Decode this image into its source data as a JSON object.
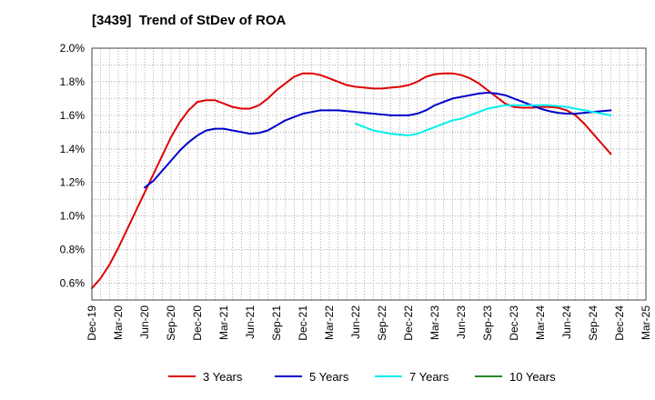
{
  "chart_data": {
    "type": "line",
    "title": "[3439]  Trend of StDev of ROA",
    "xlabel": "",
    "ylabel": "",
    "x_ticks": [
      "Dec-19",
      "Mar-20",
      "Jun-20",
      "Sep-20",
      "Dec-20",
      "Mar-21",
      "Jun-21",
      "Sep-21",
      "Dec-21",
      "Mar-22",
      "Jun-22",
      "Sep-22",
      "Dec-22",
      "Mar-23",
      "Jun-23",
      "Sep-23",
      "Dec-23",
      "Mar-24",
      "Jun-24",
      "Sep-24",
      "Dec-24",
      "Mar-25"
    ],
    "y_ticks": [
      {
        "value": 0.6,
        "label": "0.6%"
      },
      {
        "value": 0.8,
        "label": "0.8%"
      },
      {
        "value": 1.0,
        "label": "1.0%"
      },
      {
        "value": 1.2,
        "label": "1.2%"
      },
      {
        "value": 1.4,
        "label": "1.4%"
      },
      {
        "value": 1.6,
        "label": "1.6%"
      },
      {
        "value": 1.8,
        "label": "1.8%"
      },
      {
        "value": 2.0,
        "label": "2.0%"
      }
    ],
    "ylim": [
      0.5,
      2.0
    ],
    "grid": true,
    "legend_position": "bottom",
    "series": [
      {
        "name": "3 Years",
        "color": "#dd0000",
        "points": [
          [
            "Dec-19",
            0.57
          ],
          [
            "Jan-20",
            0.63
          ],
          [
            "Feb-20",
            0.71
          ],
          [
            "Mar-20",
            0.81
          ],
          [
            "Apr-20",
            0.92
          ],
          [
            "May-20",
            1.03
          ],
          [
            "Jun-20",
            1.14
          ],
          [
            "Jul-20",
            1.25
          ],
          [
            "Aug-20",
            1.36
          ],
          [
            "Sep-20",
            1.47
          ],
          [
            "Oct-20",
            1.56
          ],
          [
            "Nov-20",
            1.63
          ],
          [
            "Dec-20",
            1.68
          ],
          [
            "Jan-21",
            1.69
          ],
          [
            "Feb-21",
            1.69
          ],
          [
            "Mar-21",
            1.67
          ],
          [
            "Apr-21",
            1.65
          ],
          [
            "May-21",
            1.64
          ],
          [
            "Jun-21",
            1.64
          ],
          [
            "Jul-21",
            1.66
          ],
          [
            "Aug-21",
            1.7
          ],
          [
            "Sep-21",
            1.75
          ],
          [
            "Oct-21",
            1.79
          ],
          [
            "Nov-21",
            1.83
          ],
          [
            "Dec-21",
            1.85
          ],
          [
            "Jan-22",
            1.85
          ],
          [
            "Feb-22",
            1.84
          ],
          [
            "Mar-22",
            1.82
          ],
          [
            "Apr-22",
            1.8
          ],
          [
            "May-22",
            1.78
          ],
          [
            "Jun-22",
            1.77
          ],
          [
            "Jul-22",
            1.765
          ],
          [
            "Aug-22",
            1.76
          ],
          [
            "Sep-22",
            1.76
          ],
          [
            "Oct-22",
            1.765
          ],
          [
            "Nov-22",
            1.77
          ],
          [
            "Dec-22",
            1.78
          ],
          [
            "Jan-23",
            1.8
          ],
          [
            "Feb-23",
            1.83
          ],
          [
            "Mar-23",
            1.845
          ],
          [
            "Apr-23",
            1.85
          ],
          [
            "May-23",
            1.85
          ],
          [
            "Jun-23",
            1.84
          ],
          [
            "Jul-23",
            1.82
          ],
          [
            "Aug-23",
            1.79
          ],
          [
            "Sep-23",
            1.75
          ],
          [
            "Oct-23",
            1.71
          ],
          [
            "Nov-23",
            1.67
          ],
          [
            "Dec-23",
            1.65
          ],
          [
            "Jan-24",
            1.645
          ],
          [
            "Feb-24",
            1.645
          ],
          [
            "Mar-24",
            1.65
          ],
          [
            "Apr-24",
            1.65
          ],
          [
            "May-24",
            1.645
          ],
          [
            "Jun-24",
            1.63
          ],
          [
            "Jul-24",
            1.6
          ],
          [
            "Aug-24",
            1.55
          ],
          [
            "Sep-24",
            1.49
          ],
          [
            "Oct-24",
            1.43
          ],
          [
            "Nov-24",
            1.37
          ]
        ]
      },
      {
        "name": "5 Years",
        "color": "#0000cc",
        "points": [
          [
            "Jun-20",
            1.17
          ],
          [
            "Jul-20",
            1.21
          ],
          [
            "Aug-20",
            1.27
          ],
          [
            "Sep-20",
            1.33
          ],
          [
            "Oct-20",
            1.39
          ],
          [
            "Nov-20",
            1.44
          ],
          [
            "Dec-20",
            1.48
          ],
          [
            "Jan-21",
            1.51
          ],
          [
            "Feb-21",
            1.52
          ],
          [
            "Mar-21",
            1.52
          ],
          [
            "Apr-21",
            1.51
          ],
          [
            "May-21",
            1.5
          ],
          [
            "Jun-21",
            1.49
          ],
          [
            "Jul-21",
            1.495
          ],
          [
            "Aug-21",
            1.51
          ],
          [
            "Sep-21",
            1.54
          ],
          [
            "Oct-21",
            1.57
          ],
          [
            "Nov-21",
            1.59
          ],
          [
            "Dec-21",
            1.61
          ],
          [
            "Jan-22",
            1.62
          ],
          [
            "Feb-22",
            1.63
          ],
          [
            "Mar-22",
            1.63
          ],
          [
            "Apr-22",
            1.63
          ],
          [
            "May-22",
            1.625
          ],
          [
            "Jun-22",
            1.62
          ],
          [
            "Jul-22",
            1.615
          ],
          [
            "Aug-22",
            1.61
          ],
          [
            "Sep-22",
            1.605
          ],
          [
            "Oct-22",
            1.6
          ],
          [
            "Nov-22",
            1.6
          ],
          [
            "Dec-22",
            1.6
          ],
          [
            "Jan-23",
            1.61
          ],
          [
            "Feb-23",
            1.63
          ],
          [
            "Mar-23",
            1.66
          ],
          [
            "Apr-23",
            1.68
          ],
          [
            "May-23",
            1.7
          ],
          [
            "Jun-23",
            1.71
          ],
          [
            "Jul-23",
            1.72
          ],
          [
            "Aug-23",
            1.73
          ],
          [
            "Sep-23",
            1.735
          ],
          [
            "Oct-23",
            1.73
          ],
          [
            "Nov-23",
            1.72
          ],
          [
            "Dec-23",
            1.7
          ],
          [
            "Jan-24",
            1.68
          ],
          [
            "Feb-24",
            1.66
          ],
          [
            "Mar-24",
            1.64
          ],
          [
            "Apr-24",
            1.625
          ],
          [
            "May-24",
            1.615
          ],
          [
            "Jun-24",
            1.61
          ],
          [
            "Jul-24",
            1.61
          ],
          [
            "Aug-24",
            1.615
          ],
          [
            "Sep-24",
            1.62
          ],
          [
            "Oct-24",
            1.625
          ],
          [
            "Nov-24",
            1.63
          ]
        ]
      },
      {
        "name": "7 Years",
        "color": "#00eeee",
        "points": [
          [
            "Jun-22",
            1.55
          ],
          [
            "Jul-22",
            1.53
          ],
          [
            "Aug-22",
            1.51
          ],
          [
            "Sep-22",
            1.5
          ],
          [
            "Oct-22",
            1.49
          ],
          [
            "Nov-22",
            1.485
          ],
          [
            "Dec-22",
            1.48
          ],
          [
            "Jan-23",
            1.49
          ],
          [
            "Feb-23",
            1.51
          ],
          [
            "Mar-23",
            1.53
          ],
          [
            "Apr-23",
            1.55
          ],
          [
            "May-23",
            1.57
          ],
          [
            "Jun-23",
            1.58
          ],
          [
            "Jul-23",
            1.6
          ],
          [
            "Aug-23",
            1.62
          ],
          [
            "Sep-23",
            1.64
          ],
          [
            "Oct-23",
            1.65
          ],
          [
            "Nov-23",
            1.66
          ],
          [
            "Dec-23",
            1.66
          ],
          [
            "Jan-24",
            1.66
          ],
          [
            "Feb-24",
            1.66
          ],
          [
            "Mar-24",
            1.66
          ],
          [
            "Apr-24",
            1.66
          ],
          [
            "May-24",
            1.655
          ],
          [
            "Jun-24",
            1.65
          ],
          [
            "Jul-24",
            1.64
          ],
          [
            "Aug-24",
            1.63
          ],
          [
            "Sep-24",
            1.62
          ],
          [
            "Oct-24",
            1.61
          ],
          [
            "Nov-24",
            1.6
          ]
        ]
      },
      {
        "name": "10 Years",
        "color": "#228b22",
        "points": []
      }
    ]
  }
}
